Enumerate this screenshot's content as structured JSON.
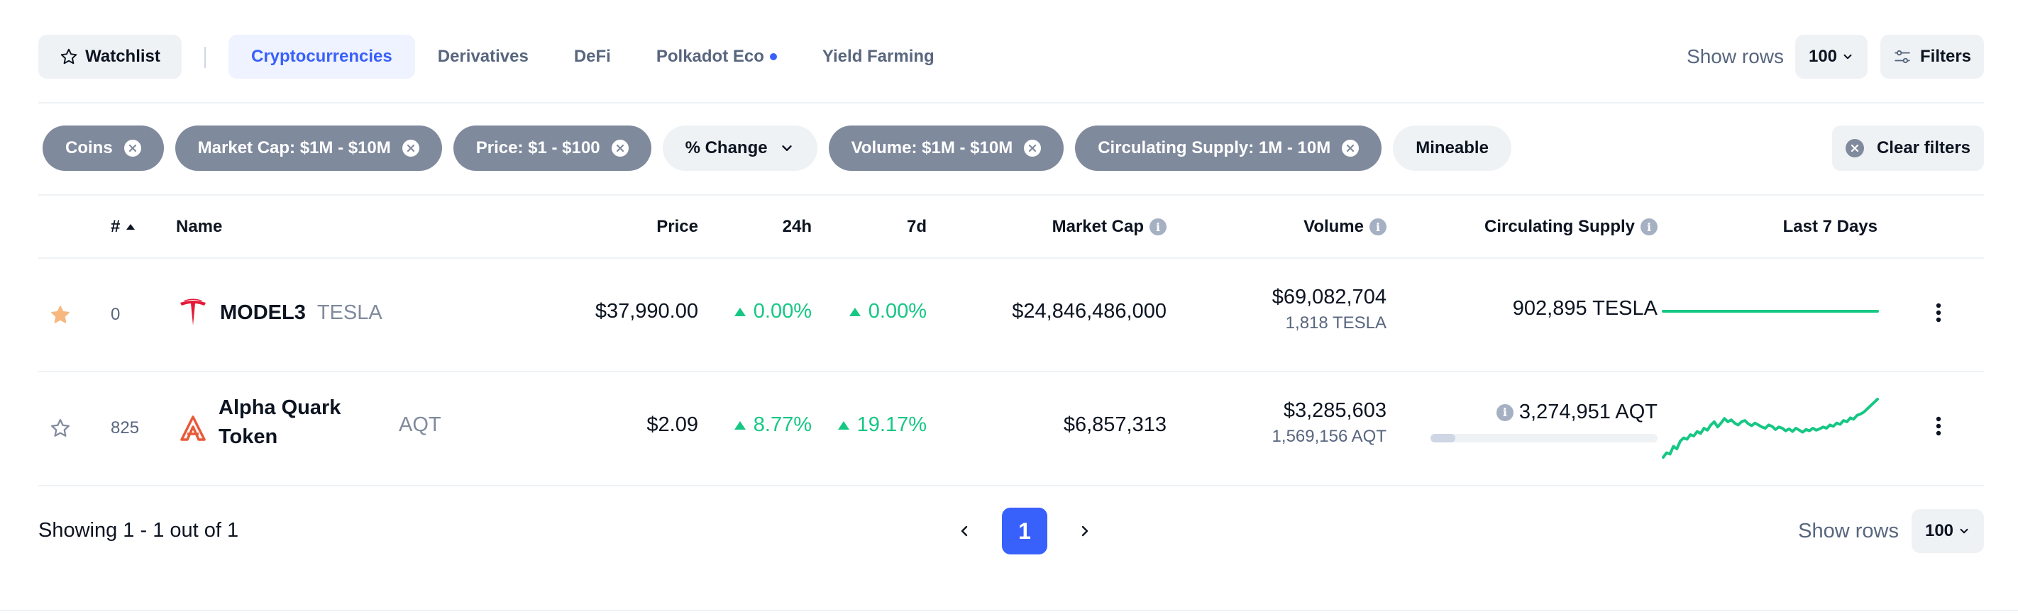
{
  "toolbar": {
    "watchlist_label": "Watchlist",
    "tabs": [
      {
        "label": "Cryptocurrencies",
        "active": true
      },
      {
        "label": "Derivatives"
      },
      {
        "label": "DeFi"
      },
      {
        "label": "Polkadot Eco"
      },
      {
        "label": "Yield Farming"
      }
    ],
    "show_rows_label": "Show rows",
    "rows_value": "100",
    "filters_label": "Filters"
  },
  "filters": {
    "chips": [
      {
        "label": "Coins"
      },
      {
        "label": "Market Cap: $1M - $10M"
      },
      {
        "label": "Price: $1 - $100"
      },
      {
        "label": "% Change"
      },
      {
        "label": "Volume: $1M - $10M"
      },
      {
        "label": "Circulating Supply: 1M - 10M"
      },
      {
        "label": "Mineable"
      }
    ],
    "clear_label": "Clear filters"
  },
  "table": {
    "headers": {
      "rank": "#",
      "name": "Name",
      "price": "Price",
      "change_24h": "24h",
      "change_7d": "7d",
      "market_cap": "Market Cap",
      "volume": "Volume",
      "supply": "Circulating Supply",
      "last7": "Last 7 Days"
    },
    "rows": [
      {
        "starred": true,
        "rank": "0",
        "name": "MODEL3",
        "symbol": "TESLA",
        "price": "$37,990.00",
        "change_24h": "0.00%",
        "change_7d": "0.00%",
        "market_cap": "$24,846,486,000",
        "volume_usd": "$69,082,704",
        "volume_coin": "1,818 TESLA",
        "supply": "902,895 TESLA",
        "sparkline": [
          50,
          50,
          50,
          50,
          50,
          50,
          50,
          50,
          50,
          50,
          50,
          50,
          50,
          50,
          50,
          50,
          50,
          50,
          50,
          50
        ]
      },
      {
        "starred": false,
        "rank": "825",
        "name_line1": "Alpha Quark",
        "name_line2": "Token",
        "symbol": "AQT",
        "price": "$2.09",
        "change_24h": "8.77%",
        "change_7d": "19.17%",
        "market_cap": "$6,857,313",
        "volume_usd": "$3,285,603",
        "volume_coin": "1,569,156 AQT",
        "supply": "3,274,951 AQT",
        "supply_fill_pct": 11,
        "sparkline": [
          5,
          12,
          10,
          22,
          18,
          30,
          35,
          33,
          40,
          38,
          45,
          42,
          50,
          47,
          55,
          60,
          52,
          58,
          65,
          60,
          63,
          58,
          55,
          60,
          62,
          57,
          54,
          58,
          55,
          52,
          50,
          55,
          53,
          48,
          52,
          50,
          46,
          49,
          45,
          50,
          47,
          44,
          48,
          46,
          50,
          47,
          49,
          52,
          50,
          55,
          53,
          58,
          56,
          62,
          60,
          66,
          64,
          70,
          72,
          75,
          80,
          85,
          90,
          95
        ]
      }
    ]
  },
  "footer": {
    "showing": "Showing 1 - 1 out of 1",
    "current_page": "1",
    "show_rows_label": "Show rows",
    "rows_value": "100"
  },
  "colors": {
    "accent": "#3861fb",
    "positive": "#16c784",
    "chip_bg": "#808a9d",
    "star_active": "#f6b87e"
  }
}
